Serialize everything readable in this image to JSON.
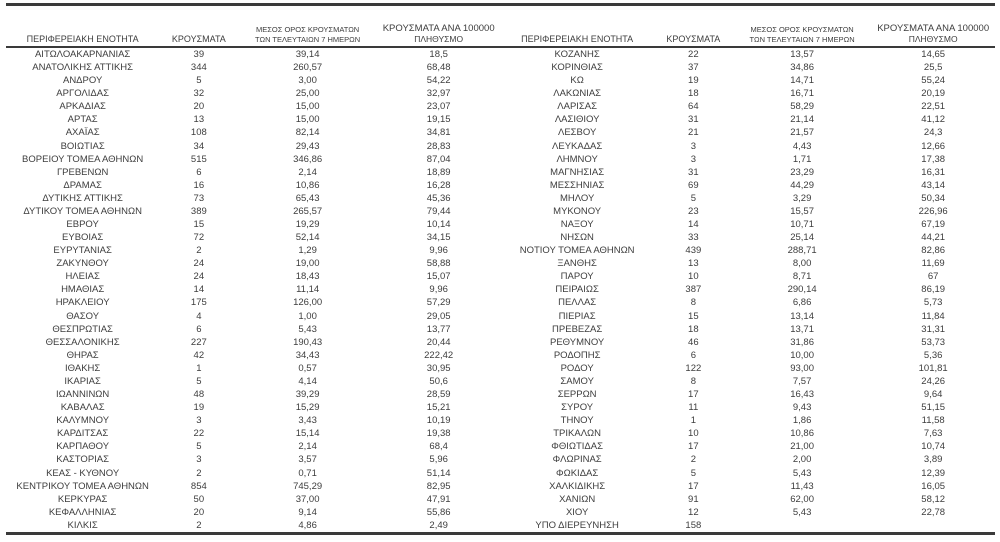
{
  "table_headers": {
    "region": "ΠΕΡΙΦΕΡΕΙΑΚΗ ΕΝΟΤΗΤΑ",
    "cases": "ΚΡΟΥΣΜΑΤΑ",
    "avg7_line1": "ΜΕΣΟΣ ΟΡΟΣ ΚΡΟΥΣΜΑΤΩΝ",
    "avg7_line2": "ΤΩΝ ΤΕΛΕΥΤΑΙΩΝ 7 ΗΜΕΡΩΝ",
    "per100k_line1": "ΚΡΟΥΣΜΑΤΑ ΑΝΑ 100000",
    "per100k_line2": "ΠΛΗΘΥΣΜΟ"
  },
  "left_table": {
    "rows": [
      [
        "ΑΙΤΩΛΟΑΚΑΡΝΑΝΙΑΣ",
        "39",
        "39,14",
        "18,5"
      ],
      [
        "ΑΝΑΤΟΛΙΚΗΣ ΑΤΤΙΚΗΣ",
        "344",
        "260,57",
        "68,48"
      ],
      [
        "ΑΝΔΡΟΥ",
        "5",
        "3,00",
        "54,22"
      ],
      [
        "ΑΡΓΟΛΙΔΑΣ",
        "32",
        "25,00",
        "32,97"
      ],
      [
        "ΑΡΚΑΔΙΑΣ",
        "20",
        "15,00",
        "23,07"
      ],
      [
        "ΑΡΤΑΣ",
        "13",
        "15,00",
        "19,15"
      ],
      [
        "ΑΧΑΪΑΣ",
        "108",
        "82,14",
        "34,81"
      ],
      [
        "ΒΟΙΩΤΙΑΣ",
        "34",
        "29,43",
        "28,83"
      ],
      [
        "ΒΟΡΕΙΟΥ ΤΟΜΕΑ ΑΘΗΝΩΝ",
        "515",
        "346,86",
        "87,04"
      ],
      [
        "ΓΡΕΒΕΝΩΝ",
        "6",
        "2,14",
        "18,89"
      ],
      [
        "ΔΡΑΜΑΣ",
        "16",
        "10,86",
        "16,28"
      ],
      [
        "ΔΥΤΙΚΗΣ ΑΤΤΙΚΗΣ",
        "73",
        "65,43",
        "45,36"
      ],
      [
        "ΔΥΤΙΚΟΥ ΤΟΜΕΑ ΑΘΗΝΩΝ",
        "389",
        "265,57",
        "79,44"
      ],
      [
        "ΕΒΡΟΥ",
        "15",
        "19,29",
        "10,14"
      ],
      [
        "ΕΥΒΟΙΑΣ",
        "72",
        "52,14",
        "34,15"
      ],
      [
        "ΕΥΡΥΤΑΝΙΑΣ",
        "2",
        "1,29",
        "9,96"
      ],
      [
        "ΖΑΚΥΝΘΟΥ",
        "24",
        "19,00",
        "58,88"
      ],
      [
        "ΗΛΕΙΑΣ",
        "24",
        "18,43",
        "15,07"
      ],
      [
        "ΗΜΑΘΙΑΣ",
        "14",
        "11,14",
        "9,96"
      ],
      [
        "ΗΡΑΚΛΕΙΟΥ",
        "175",
        "126,00",
        "57,29"
      ],
      [
        "ΘΑΣΟΥ",
        "4",
        "1,00",
        "29,05"
      ],
      [
        "ΘΕΣΠΡΩΤΙΑΣ",
        "6",
        "5,43",
        "13,77"
      ],
      [
        "ΘΕΣΣΑΛΟΝΙΚΗΣ",
        "227",
        "190,43",
        "20,44"
      ],
      [
        "ΘΗΡΑΣ",
        "42",
        "34,43",
        "222,42"
      ],
      [
        "ΙΘΑΚΗΣ",
        "1",
        "0,57",
        "30,95"
      ],
      [
        "ΙΚΑΡΙΑΣ",
        "5",
        "4,14",
        "50,6"
      ],
      [
        "ΙΩΑΝΝΙΝΩΝ",
        "48",
        "39,29",
        "28,59"
      ],
      [
        "ΚΑΒΑΛΑΣ",
        "19",
        "15,29",
        "15,21"
      ],
      [
        "ΚΑΛΥΜΝΟΥ",
        "3",
        "3,43",
        "10,19"
      ],
      [
        "ΚΑΡΔΙΤΣΑΣ",
        "22",
        "15,14",
        "19,38"
      ],
      [
        "ΚΑΡΠΑΘΟΥ",
        "5",
        "2,14",
        "68,4"
      ],
      [
        "ΚΑΣΤΟΡΙΑΣ",
        "3",
        "3,57",
        "5,96"
      ],
      [
        "ΚΕΑΣ - ΚΥΘΝΟΥ",
        "2",
        "0,71",
        "51,14"
      ],
      [
        "ΚΕΝΤΡΙΚΟΥ ΤΟΜΕΑ ΑΘΗΝΩΝ",
        "854",
        "745,29",
        "82,95"
      ],
      [
        "ΚΕΡΚΥΡΑΣ",
        "50",
        "37,00",
        "47,91"
      ],
      [
        "ΚΕΦΑΛΛΗΝΙΑΣ",
        "20",
        "9,14",
        "55,86"
      ],
      [
        "ΚΙΛΚΙΣ",
        "2",
        "4,86",
        "2,49"
      ]
    ]
  },
  "right_table": {
    "rows": [
      [
        "ΚΟΖΑΝΗΣ",
        "22",
        "13,57",
        "14,65"
      ],
      [
        "ΚΟΡΙΝΘΙΑΣ",
        "37",
        "34,86",
        "25,5"
      ],
      [
        "ΚΩ",
        "19",
        "14,71",
        "55,24"
      ],
      [
        "ΛΑΚΩΝΙΑΣ",
        "18",
        "16,71",
        "20,19"
      ],
      [
        "ΛΑΡΙΣΑΣ",
        "64",
        "58,29",
        "22,51"
      ],
      [
        "ΛΑΣΙΘΙΟΥ",
        "31",
        "21,14",
        "41,12"
      ],
      [
        "ΛΕΣΒΟΥ",
        "21",
        "21,57",
        "24,3"
      ],
      [
        "ΛΕΥΚΑΔΑΣ",
        "3",
        "4,43",
        "12,66"
      ],
      [
        "ΛΗΜΝΟΥ",
        "3",
        "1,71",
        "17,38"
      ],
      [
        "ΜΑΓΝΗΣΙΑΣ",
        "31",
        "23,29",
        "16,31"
      ],
      [
        "ΜΕΣΣΗΝΙΑΣ",
        "69",
        "44,29",
        "43,14"
      ],
      [
        "ΜΗΛΟΥ",
        "5",
        "3,29",
        "50,34"
      ],
      [
        "ΜΥΚΟΝΟΥ",
        "23",
        "15,57",
        "226,96"
      ],
      [
        "ΝΑΞΟΥ",
        "14",
        "10,71",
        "67,19"
      ],
      [
        "ΝΗΣΩΝ",
        "33",
        "25,14",
        "44,21"
      ],
      [
        "ΝΟΤΙΟΥ ΤΟΜΕΑ ΑΘΗΝΩΝ",
        "439",
        "288,71",
        "82,86"
      ],
      [
        "ΞΑΝΘΗΣ",
        "13",
        "8,00",
        "11,69"
      ],
      [
        "ΠΑΡΟΥ",
        "10",
        "8,71",
        "67"
      ],
      [
        "ΠΕΙΡΑΙΩΣ",
        "387",
        "290,14",
        "86,19"
      ],
      [
        "ΠΕΛΛΑΣ",
        "8",
        "6,86",
        "5,73"
      ],
      [
        "ΠΙΕΡΙΑΣ",
        "15",
        "13,14",
        "11,84"
      ],
      [
        "ΠΡΕΒΕΖΑΣ",
        "18",
        "13,71",
        "31,31"
      ],
      [
        "ΡΕΘΥΜΝΟΥ",
        "46",
        "31,86",
        "53,73"
      ],
      [
        "ΡΟΔΟΠΗΣ",
        "6",
        "10,00",
        "5,36"
      ],
      [
        "ΡΟΔΟΥ",
        "122",
        "93,00",
        "101,81"
      ],
      [
        "ΣΑΜΟΥ",
        "8",
        "7,57",
        "24,26"
      ],
      [
        "ΣΕΡΡΩΝ",
        "17",
        "16,43",
        "9,64"
      ],
      [
        "ΣΥΡΟΥ",
        "11",
        "9,43",
        "51,15"
      ],
      [
        "ΤΗΝΟΥ",
        "1",
        "1,86",
        "11,58"
      ],
      [
        "ΤΡΙΚΑΛΩΝ",
        "10",
        "10,86",
        "7,63"
      ],
      [
        "ΦΘΙΩΤΙΔΑΣ",
        "17",
        "21,00",
        "10,74"
      ],
      [
        "ΦΛΩΡΙΝΑΣ",
        "2",
        "2,00",
        "3,89"
      ],
      [
        "ΦΩΚΙΔΑΣ",
        "5",
        "5,43",
        "12,39"
      ],
      [
        "ΧΑΛΚΙΔΙΚΗΣ",
        "17",
        "11,43",
        "16,05"
      ],
      [
        "ΧΑΝΙΩΝ",
        "91",
        "62,00",
        "58,12"
      ],
      [
        "ΧΙΟΥ",
        "12",
        "5,43",
        "22,78"
      ],
      [
        "ΥΠΟ ΔΙΕΡΕΥΝΗΣΗ",
        "158",
        "",
        ""
      ]
    ]
  },
  "colors": {
    "text": "#3d3d3d",
    "rule": "#3a3a3a",
    "background": "#ffffff"
  }
}
